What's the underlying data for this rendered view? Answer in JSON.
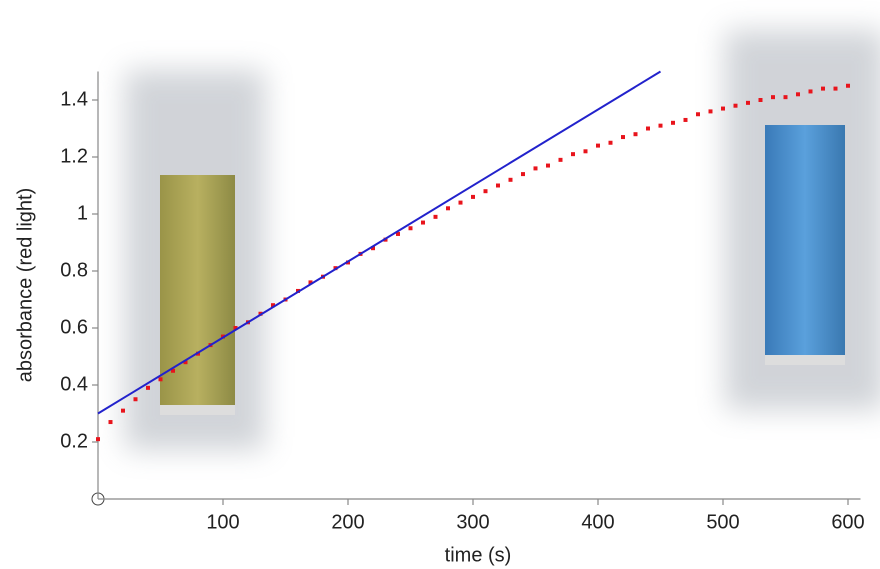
{
  "chart_data": {
    "type": "scatter",
    "x_label": "time (s)",
    "y_label": "absorbance (red light)",
    "xlim": [
      0,
      610
    ],
    "ylim": [
      0,
      1.5
    ],
    "xticks": [
      100,
      200,
      300,
      400,
      500,
      600
    ],
    "yticks": [
      0.2,
      0.4,
      0.6,
      0.8,
      1,
      1.2,
      1.4
    ],
    "series": [
      {
        "type": "scatter",
        "color": "#e8141c",
        "x": [
          0,
          10,
          20,
          30,
          40,
          50,
          60,
          70,
          80,
          90,
          100,
          110,
          120,
          130,
          140,
          150,
          160,
          170,
          180,
          190,
          200,
          210,
          220,
          230,
          240,
          250,
          260,
          270,
          280,
          290,
          300,
          310,
          320,
          330,
          340,
          350,
          360,
          370,
          380,
          390,
          400,
          410,
          420,
          430,
          440,
          450,
          460,
          470,
          480,
          490,
          500,
          510,
          520,
          530,
          540,
          550,
          560,
          570,
          580,
          590,
          600
        ],
        "values": [
          0.21,
          0.27,
          0.31,
          0.35,
          0.39,
          0.42,
          0.45,
          0.48,
          0.51,
          0.54,
          0.57,
          0.6,
          0.62,
          0.65,
          0.68,
          0.7,
          0.73,
          0.76,
          0.78,
          0.81,
          0.83,
          0.86,
          0.88,
          0.91,
          0.93,
          0.95,
          0.97,
          0.99,
          1.02,
          1.04,
          1.06,
          1.08,
          1.1,
          1.12,
          1.14,
          1.16,
          1.17,
          1.19,
          1.21,
          1.22,
          1.24,
          1.25,
          1.27,
          1.28,
          1.3,
          1.31,
          1.32,
          1.33,
          1.35,
          1.36,
          1.37,
          1.38,
          1.39,
          1.4,
          1.41,
          1.41,
          1.42,
          1.43,
          1.44,
          1.44,
          1.45
        ]
      },
      {
        "type": "line",
        "color": "#2222cc",
        "x": [
          0,
          450
        ],
        "values": [
          0.3,
          1.5
        ]
      }
    ]
  }
}
